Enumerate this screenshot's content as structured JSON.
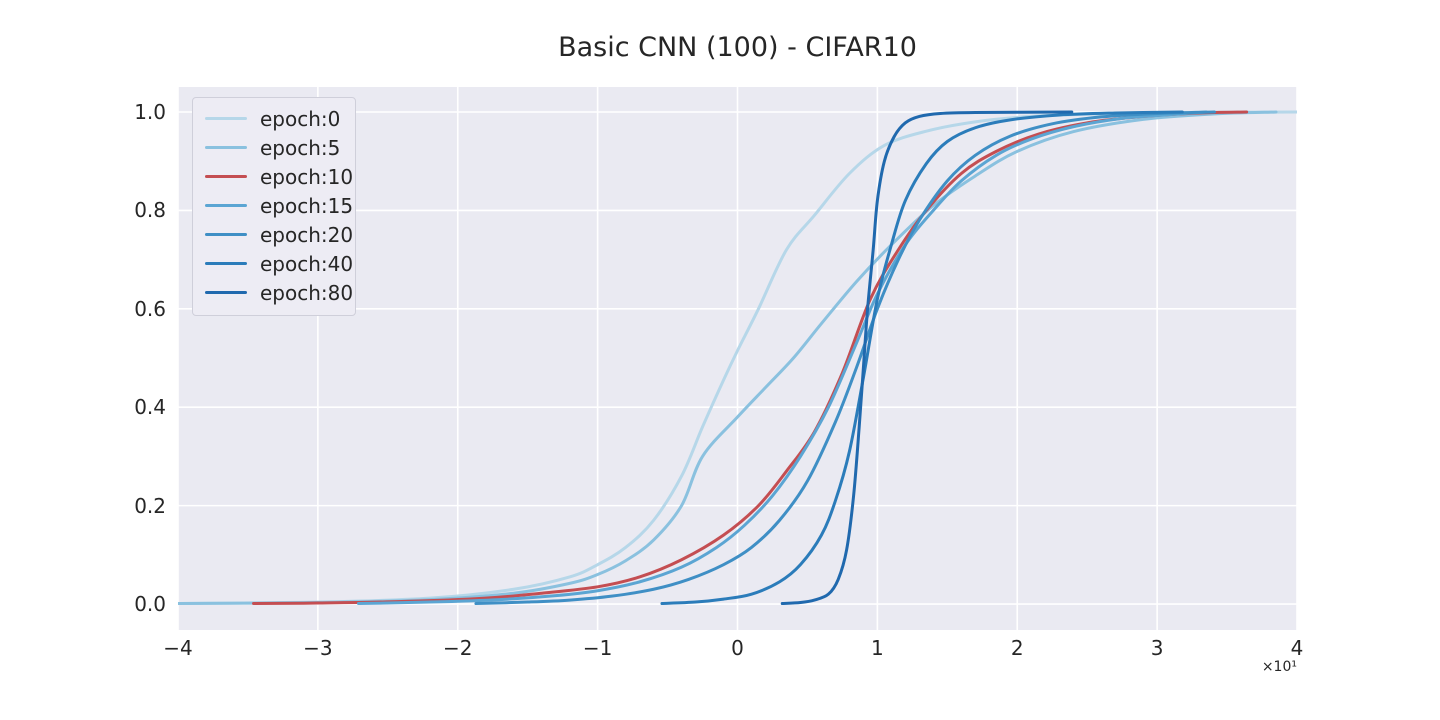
{
  "chart_data": {
    "type": "line",
    "title": "Basic CNN (100) - CIFAR10",
    "xlabel": "",
    "ylabel": "",
    "note": "Empirical CDF-style sigmoid curves of values per training epoch; x tick values are scaled by 10 (offset text ×10¹).",
    "x_axis": {
      "range": [
        -4,
        4
      ],
      "tick_values": [
        -4,
        -3,
        -2,
        -1,
        0,
        1,
        2,
        3,
        4
      ],
      "tick_labels": [
        "−4",
        "−3",
        "−2",
        "−1",
        "0",
        "1",
        "2",
        "3",
        "4"
      ],
      "offset_text": "×10¹"
    },
    "y_axis": {
      "range": [
        -0.0528,
        1.0508
      ],
      "tick_values": [
        0.0,
        0.2,
        0.4,
        0.6,
        0.8,
        1.0
      ],
      "tick_labels": [
        "0.0",
        "0.2",
        "0.4",
        "0.6",
        "0.8",
        "1.0"
      ]
    },
    "grid": true,
    "legend_position": "upper left",
    "series": [
      {
        "label": "epoch:0",
        "color": "#b6d7e9",
        "points": [
          [
            -4,
            0.001
          ],
          [
            -3,
            0.004
          ],
          [
            -2.2,
            0.012
          ],
          [
            -1.6,
            0.03
          ],
          [
            -1.2,
            0.055
          ],
          [
            -1.0,
            0.08
          ],
          [
            -0.8,
            0.115
          ],
          [
            -0.6,
            0.17
          ],
          [
            -0.4,
            0.26
          ],
          [
            -0.25,
            0.36
          ],
          [
            -0.1,
            0.455
          ],
          [
            0,
            0.515
          ],
          [
            0.15,
            0.6
          ],
          [
            0.35,
            0.72
          ],
          [
            0.55,
            0.79
          ],
          [
            0.8,
            0.875
          ],
          [
            1.05,
            0.932
          ],
          [
            1.35,
            0.961
          ],
          [
            1.7,
            0.98
          ],
          [
            2.1,
            0.991
          ],
          [
            2.6,
            0.996
          ],
          [
            3.2,
            0.999
          ],
          [
            4,
            1.0
          ]
        ]
      },
      {
        "label": "epoch:5",
        "color": "#8ac1df",
        "points": [
          [
            -4,
            0.001
          ],
          [
            -3,
            0.003
          ],
          [
            -2.2,
            0.009
          ],
          [
            -1.6,
            0.022
          ],
          [
            -1.2,
            0.042
          ],
          [
            -1.0,
            0.06
          ],
          [
            -0.8,
            0.088
          ],
          [
            -0.6,
            0.13
          ],
          [
            -0.4,
            0.2
          ],
          [
            -0.25,
            0.3
          ],
          [
            0,
            0.38
          ],
          [
            0.2,
            0.44
          ],
          [
            0.4,
            0.5
          ],
          [
            0.6,
            0.57
          ],
          [
            0.85,
            0.655
          ],
          [
            1.1,
            0.73
          ],
          [
            1.4,
            0.81
          ],
          [
            1.7,
            0.87
          ],
          [
            2.0,
            0.92
          ],
          [
            2.4,
            0.96
          ],
          [
            2.9,
            0.985
          ],
          [
            3.4,
            0.996
          ],
          [
            3.85,
            1.0
          ]
        ]
      },
      {
        "label": "epoch:10",
        "color": "#c44e52",
        "points": [
          [
            -3.46,
            0.001
          ],
          [
            -3,
            0.002
          ],
          [
            -2.4,
            0.005
          ],
          [
            -1.8,
            0.012
          ],
          [
            -1.4,
            0.022
          ],
          [
            -1.0,
            0.035
          ],
          [
            -0.7,
            0.055
          ],
          [
            -0.4,
            0.09
          ],
          [
            -0.1,
            0.14
          ],
          [
            0.15,
            0.2
          ],
          [
            0.35,
            0.27
          ],
          [
            0.55,
            0.35
          ],
          [
            0.75,
            0.47
          ],
          [
            0.95,
            0.62
          ],
          [
            1.15,
            0.72
          ],
          [
            1.35,
            0.8
          ],
          [
            1.6,
            0.875
          ],
          [
            1.85,
            0.92
          ],
          [
            2.15,
            0.955
          ],
          [
            2.5,
            0.978
          ],
          [
            2.9,
            0.991
          ],
          [
            3.3,
            0.998
          ],
          [
            3.64,
            1.0
          ]
        ]
      },
      {
        "label": "epoch:15",
        "color": "#5ba5d3",
        "points": [
          [
            -2.71,
            0.001
          ],
          [
            -2.2,
            0.004
          ],
          [
            -1.7,
            0.009
          ],
          [
            -1.3,
            0.017
          ],
          [
            -1.0,
            0.027
          ],
          [
            -0.7,
            0.045
          ],
          [
            -0.4,
            0.075
          ],
          [
            -0.15,
            0.115
          ],
          [
            0.05,
            0.16
          ],
          [
            0.25,
            0.22
          ],
          [
            0.45,
            0.3
          ],
          [
            0.65,
            0.4
          ],
          [
            0.85,
            0.53
          ],
          [
            1.0,
            0.63
          ],
          [
            1.2,
            0.73
          ],
          [
            1.4,
            0.8
          ],
          [
            1.6,
            0.86
          ],
          [
            1.85,
            0.912
          ],
          [
            2.1,
            0.945
          ],
          [
            2.4,
            0.97
          ],
          [
            2.75,
            0.987
          ],
          [
            3.1,
            0.995
          ],
          [
            3.35,
            1.0
          ]
        ]
      },
      {
        "label": "epoch:20",
        "color": "#3f8fc5",
        "points": [
          [
            -1.87,
            0.001
          ],
          [
            -1.5,
            0.004
          ],
          [
            -1.2,
            0.008
          ],
          [
            -0.9,
            0.016
          ],
          [
            -0.6,
            0.03
          ],
          [
            -0.35,
            0.05
          ],
          [
            -0.1,
            0.08
          ],
          [
            0.1,
            0.115
          ],
          [
            0.3,
            0.17
          ],
          [
            0.5,
            0.25
          ],
          [
            0.7,
            0.37
          ],
          [
            0.85,
            0.48
          ],
          [
            1.0,
            0.6
          ],
          [
            1.15,
            0.7
          ],
          [
            1.3,
            0.78
          ],
          [
            1.5,
            0.86
          ],
          [
            1.7,
            0.912
          ],
          [
            1.95,
            0.951
          ],
          [
            2.25,
            0.976
          ],
          [
            2.6,
            0.99
          ],
          [
            3.0,
            0.997
          ],
          [
            3.41,
            1.0
          ]
        ]
      },
      {
        "label": "epoch:40",
        "color": "#2b7cba",
        "points": [
          [
            -0.54,
            0.001
          ],
          [
            -0.3,
            0.004
          ],
          [
            -0.1,
            0.01
          ],
          [
            0.1,
            0.02
          ],
          [
            0.3,
            0.045
          ],
          [
            0.45,
            0.08
          ],
          [
            0.6,
            0.14
          ],
          [
            0.7,
            0.21
          ],
          [
            0.8,
            0.31
          ],
          [
            0.9,
            0.46
          ],
          [
            1.0,
            0.62
          ],
          [
            1.1,
            0.73
          ],
          [
            1.2,
            0.82
          ],
          [
            1.35,
            0.895
          ],
          [
            1.5,
            0.94
          ],
          [
            1.7,
            0.968
          ],
          [
            1.95,
            0.984
          ],
          [
            2.3,
            0.994
          ],
          [
            2.7,
            0.998
          ],
          [
            3.18,
            1.0
          ]
        ]
      },
      {
        "label": "epoch:80",
        "color": "#2069ae",
        "points": [
          [
            0.32,
            0.001
          ],
          [
            0.45,
            0.003
          ],
          [
            0.55,
            0.008
          ],
          [
            0.65,
            0.02
          ],
          [
            0.72,
            0.05
          ],
          [
            0.78,
            0.11
          ],
          [
            0.83,
            0.22
          ],
          [
            0.87,
            0.36
          ],
          [
            0.9,
            0.48
          ],
          [
            0.93,
            0.6
          ],
          [
            0.97,
            0.72
          ],
          [
            1.0,
            0.82
          ],
          [
            1.05,
            0.9
          ],
          [
            1.12,
            0.95
          ],
          [
            1.2,
            0.978
          ],
          [
            1.3,
            0.991
          ],
          [
            1.45,
            0.997
          ],
          [
            1.7,
            0.999
          ],
          [
            2.39,
            1.0
          ]
        ]
      }
    ],
    "colors": {
      "figure_bg": "#ffffff",
      "axes_bg": "#eaeaf2",
      "grid": "#ffffff",
      "text": "#262626",
      "legend_bg": "#edecf4",
      "legend_border": "#cfcfda"
    },
    "line_width": 3
  }
}
